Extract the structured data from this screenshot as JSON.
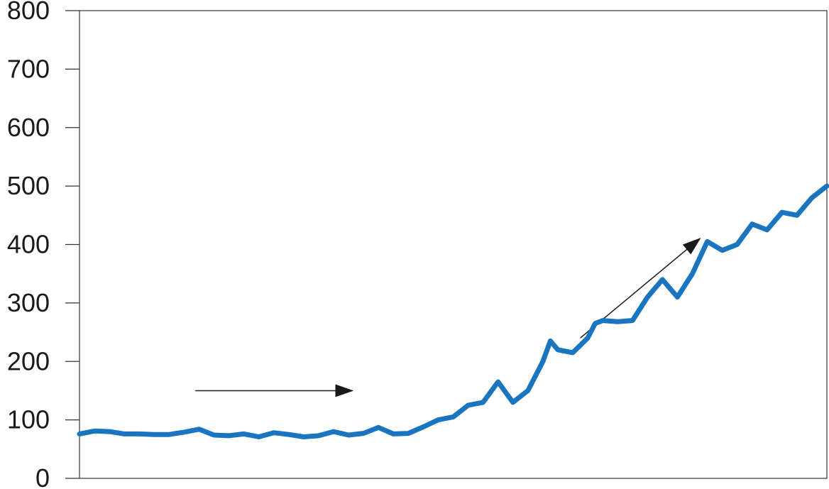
{
  "chart_data": {
    "type": "line",
    "title": "",
    "xlabel": "",
    "ylabel": "",
    "ylim": [
      0,
      800
    ],
    "yticks": [
      0,
      100,
      200,
      300,
      400,
      500,
      600,
      700,
      800
    ],
    "ytick_labels": [
      "0",
      "100",
      "200",
      "300",
      "400",
      "500",
      "600",
      "700",
      "800"
    ],
    "grid": false,
    "series": [
      {
        "color": "#1a75c0",
        "x": [
          0,
          2,
          4,
          6,
          8,
          10,
          12,
          14,
          16,
          18,
          20,
          22,
          24,
          26,
          28,
          30,
          32,
          34,
          36,
          38,
          40,
          42,
          44,
          46,
          48,
          50,
          52,
          54,
          56,
          58,
          60,
          62,
          63,
          64,
          66,
          68,
          69,
          70,
          72,
          74,
          76,
          78,
          80,
          82,
          84,
          86,
          88,
          90,
          92,
          94,
          96,
          98,
          100
        ],
        "values": [
          76,
          81,
          80,
          76,
          76,
          75,
          75,
          79,
          84,
          74,
          73,
          76,
          71,
          78,
          75,
          71,
          73,
          80,
          74,
          77,
          87,
          76,
          77,
          88,
          100,
          105,
          125,
          130,
          165,
          130,
          150,
          200,
          235,
          220,
          215,
          240,
          265,
          270,
          268,
          270,
          310,
          340,
          310,
          350,
          405,
          390,
          400,
          435,
          425,
          455,
          450,
          480,
          500
        ]
      }
    ],
    "annotations": [
      {
        "type": "arrow",
        "from": [
          15.5,
          150
        ],
        "to": [
          36.5,
          150
        ]
      },
      {
        "type": "arrow",
        "from": [
          67,
          240
        ],
        "to": [
          83,
          410
        ]
      }
    ]
  }
}
